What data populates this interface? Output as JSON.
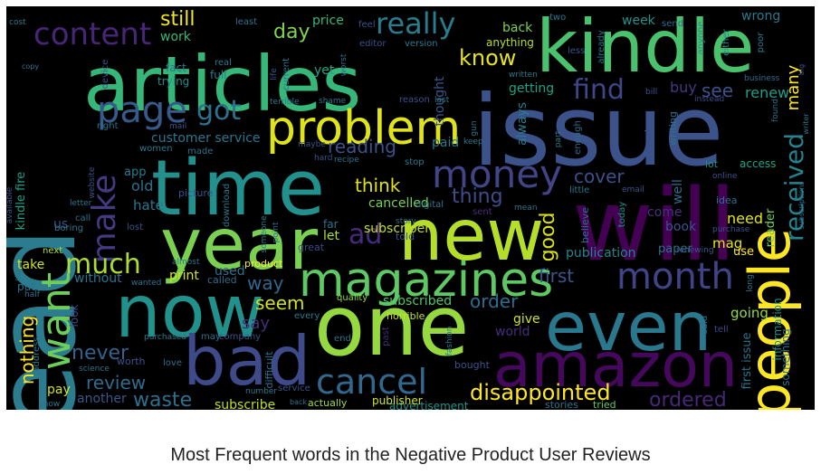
{
  "caption": "Most Frequent words in the Negative Product User Reviews",
  "colormap": "viridis",
  "background": "#000000",
  "words": [
    {
      "text": "read",
      "color": "#2b7c8e"
    },
    {
      "text": "articles",
      "color": "#35b779"
    },
    {
      "text": "issue",
      "color": "#3b528b"
    },
    {
      "text": "kindle",
      "color": "#4ac16d"
    },
    {
      "text": "time",
      "color": "#22908c"
    },
    {
      "text": "year",
      "color": "#7ad151"
    },
    {
      "text": "will",
      "color": "#440154"
    },
    {
      "text": "new",
      "color": "#b5de2b"
    },
    {
      "text": "one",
      "color": "#95d840"
    },
    {
      "text": "now",
      "color": "#21918c"
    },
    {
      "text": "bad",
      "color": "#3e4a89"
    },
    {
      "text": "even",
      "color": "#2a788e"
    },
    {
      "text": "amazon",
      "color": "#46085c"
    },
    {
      "text": "people",
      "color": "#fde725"
    },
    {
      "text": "magazines",
      "color": "#5ec962"
    },
    {
      "text": "problem",
      "color": "#dfe318"
    },
    {
      "text": "month",
      "color": "#404387"
    },
    {
      "text": "money",
      "color": "#414487"
    },
    {
      "text": "page",
      "color": "#375a8c"
    },
    {
      "text": "content",
      "color": "#482677"
    },
    {
      "text": "want",
      "color": "#6ccd5a"
    },
    {
      "text": "cancel",
      "color": "#31688e"
    },
    {
      "text": "make",
      "color": "#443983"
    },
    {
      "text": "much",
      "color": "#addc30"
    },
    {
      "text": "got",
      "color": "#2c728e"
    },
    {
      "text": "really",
      "color": "#287c8e"
    },
    {
      "text": "find",
      "color": "#3f4788"
    },
    {
      "text": "received",
      "color": "#26828e"
    },
    {
      "text": "disappointed",
      "color": "#fde725"
    },
    {
      "text": "ordered",
      "color": "#482878"
    },
    {
      "text": "cover",
      "color": "#3c508b"
    },
    {
      "text": "thing",
      "color": "#3e4c8a"
    },
    {
      "text": "ad",
      "color": "#472a7a"
    },
    {
      "text": "never",
      "color": "#33628d"
    },
    {
      "text": "waste",
      "color": "#2d708e"
    },
    {
      "text": "review",
      "color": "#2f6c8e"
    },
    {
      "text": "still",
      "color": "#f1e51d"
    },
    {
      "text": "know",
      "color": "#e5e419"
    },
    {
      "text": "day",
      "color": "#7fd34e"
    },
    {
      "text": "reading",
      "color": "#3b528b"
    },
    {
      "text": "think",
      "color": "#dde318"
    },
    {
      "text": "good",
      "color": "#d8e219"
    },
    {
      "text": "first",
      "color": "#3a548c"
    },
    {
      "text": "order",
      "color": "#2f6b8e"
    },
    {
      "text": "seem",
      "color": "#d0e11c"
    },
    {
      "text": "way",
      "color": "#30678d"
    },
    {
      "text": "say",
      "color": "#472c7a"
    },
    {
      "text": "nothing",
      "color": "#fde725"
    },
    {
      "text": "many",
      "color": "#fde725"
    },
    {
      "text": "see",
      "color": "#3b528b"
    },
    {
      "text": "buy",
      "color": "#453781"
    },
    {
      "text": "renew",
      "color": "#1f9e89"
    },
    {
      "text": "customer service",
      "color": "#2a768e"
    },
    {
      "text": "subscribe",
      "color": "#bddf26"
    },
    {
      "text": "subscribed",
      "color": "#52c569"
    },
    {
      "text": "cancelled",
      "color": "#7ad151"
    },
    {
      "text": "publication",
      "color": "#25848e"
    },
    {
      "text": "subscriber",
      "color": "#c2df23"
    },
    {
      "text": "old",
      "color": "#2c718e"
    },
    {
      "text": "hate",
      "color": "#2a788e"
    },
    {
      "text": "app",
      "color": "#287d8e"
    },
    {
      "text": "us",
      "color": "#3b528b"
    },
    {
      "text": "give",
      "color": "#d2e21b"
    },
    {
      "text": "world",
      "color": "#472d7b"
    },
    {
      "text": "going",
      "color": "#95d840"
    },
    {
      "text": "need",
      "color": "#e2e418"
    },
    {
      "text": "mag",
      "color": "#e7e419"
    },
    {
      "text": "reader",
      "color": "#6ece58"
    },
    {
      "text": "book",
      "color": "#3b528b"
    },
    {
      "text": "paper",
      "color": "#2c728e"
    },
    {
      "text": "well",
      "color": "#2f6c8e"
    },
    {
      "text": "come",
      "color": "#46337f"
    },
    {
      "text": "use",
      "color": "#fde725"
    },
    {
      "text": "print",
      "color": "#d5e21a"
    },
    {
      "text": "without",
      "color": "#2b748e"
    },
    {
      "text": "take",
      "color": "#d2e21b"
    },
    {
      "text": "used",
      "color": "#2e6f8e"
    },
    {
      "text": "paid",
      "color": "#2a788e"
    },
    {
      "text": "thought",
      "color": "#39568c"
    },
    {
      "text": "always",
      "color": "#277f8e"
    },
    {
      "text": "getting",
      "color": "#1fa188"
    },
    {
      "text": "back",
      "color": "#7ad151"
    },
    {
      "text": "week",
      "color": "#20938c"
    },
    {
      "text": "anything",
      "color": "#b8de29"
    },
    {
      "text": "price",
      "color": "#35b779"
    },
    {
      "text": "work",
      "color": "#39b977"
    },
    {
      "text": "yet",
      "color": "#20a386"
    },
    {
      "text": "fact",
      "color": "#2a788e"
    },
    {
      "text": "trying",
      "color": "#21918c"
    },
    {
      "text": "full",
      "color": "#287c8e"
    },
    {
      "text": "device",
      "color": "#3b528b"
    },
    {
      "text": "kindle fire",
      "color": "#1fa088"
    },
    {
      "text": "another",
      "color": "#38598c"
    },
    {
      "text": "pay",
      "color": "#d2e21b"
    },
    {
      "text": "look",
      "color": "#3e4989"
    },
    {
      "text": "put",
      "color": "#2c728e"
    },
    {
      "text": "called",
      "color": "#2f6c8e"
    },
    {
      "text": "first issue",
      "color": "#2c728e"
    },
    {
      "text": "information",
      "color": "#21918c"
    },
    {
      "text": "something",
      "color": "#2c728e"
    },
    {
      "text": "advertisement",
      "color": "#21918c"
    },
    {
      "text": "publisher",
      "color": "#d2e21b"
    },
    {
      "text": "actually",
      "color": "#a0da39"
    },
    {
      "text": "stories",
      "color": "#2c728e"
    },
    {
      "text": "tried",
      "color": "#5ec962"
    },
    {
      "text": "bought",
      "color": "#3b528b"
    },
    {
      "text": "wrong",
      "color": "#2a788e"
    },
    {
      "text": "send",
      "color": "#2f6c8e"
    },
    {
      "text": "either",
      "color": "#238a8d"
    },
    {
      "text": "poor",
      "color": "#2a788e"
    },
    {
      "text": "business",
      "color": "#2f6c8e"
    },
    {
      "text": "found",
      "color": "#2c728e"
    },
    {
      "text": "two",
      "color": "#2a788e"
    },
    {
      "text": "already",
      "color": "#2c728e"
    },
    {
      "text": "less",
      "color": "#3b528b"
    },
    {
      "text": "anyone",
      "color": "#21918c"
    },
    {
      "text": "writing",
      "color": "#2c728e"
    },
    {
      "text": "account",
      "color": "#3b528b"
    },
    {
      "text": "enough",
      "color": "#2f6c8e"
    },
    {
      "text": "part",
      "color": "#2a788e"
    },
    {
      "text": "instead",
      "color": "#3e4989"
    },
    {
      "text": "lot",
      "color": "#21918c"
    },
    {
      "text": "access",
      "color": "#20a386"
    },
    {
      "text": "online",
      "color": "#3b528b"
    },
    {
      "text": "idea",
      "color": "#2c728e"
    },
    {
      "text": "long",
      "color": "#2a788e"
    },
    {
      "text": "purchase",
      "color": "#3b528b"
    },
    {
      "text": "renewing",
      "color": "#38598c"
    },
    {
      "text": "little",
      "color": "#2a788e"
    },
    {
      "text": "email",
      "color": "#3b528b"
    },
    {
      "text": "believe",
      "color": "#2c728e"
    },
    {
      "text": "today",
      "color": "#21918c"
    },
    {
      "text": "said",
      "color": "#2a788e"
    },
    {
      "text": "tell",
      "color": "#3e4989"
    },
    {
      "text": "sent",
      "color": "#472d7b"
    },
    {
      "text": "mean",
      "color": "#2c728e"
    },
    {
      "text": "digital",
      "color": "#2a788e"
    },
    {
      "text": "story",
      "color": "#2f6c8e"
    },
    {
      "text": "told",
      "color": "#3b528b"
    },
    {
      "text": "let",
      "color": "#b5de2b"
    },
    {
      "text": "far",
      "color": "#2c728e"
    },
    {
      "text": "great",
      "color": "#3e4989"
    },
    {
      "text": "quality",
      "color": "#8fd744"
    },
    {
      "text": "horrible",
      "color": "#c8e020"
    },
    {
      "text": "every",
      "color": "#2a788e"
    },
    {
      "text": "end",
      "color": "#2c728e"
    },
    {
      "text": "past",
      "color": "#472d7b"
    },
    {
      "text": "fashion",
      "color": "#2a788e"
    },
    {
      "text": "difficult",
      "color": "#2c728e"
    },
    {
      "text": "service",
      "color": "#3b528b"
    },
    {
      "text": "number",
      "color": "#2a788e"
    },
    {
      "text": "back",
      "color": "#2c728e"
    },
    {
      "text": "worth",
      "color": "#3b528b"
    },
    {
      "text": "purchased",
      "color": "#2a788e"
    },
    {
      "text": "may",
      "color": "#2c728e"
    },
    {
      "text": "company",
      "color": "#3b528b"
    },
    {
      "text": "love",
      "color": "#2f6c8e"
    },
    {
      "text": "science",
      "color": "#2c728e"
    },
    {
      "text": "address",
      "color": "#2a788e"
    },
    {
      "text": "half",
      "color": "#2c728e"
    },
    {
      "text": "star",
      "color": "#2a788e"
    },
    {
      "text": "wanted",
      "color": "#2c728e"
    },
    {
      "text": "almost",
      "color": "#2a788e"
    },
    {
      "text": "product",
      "color": "#fde725"
    },
    {
      "text": "next",
      "color": "#b5de2b"
    },
    {
      "text": "boring",
      "color": "#2a788e"
    },
    {
      "text": "call",
      "color": "#2c728e"
    },
    {
      "text": "lost",
      "color": "#3b528b"
    },
    {
      "text": "letter",
      "color": "#2a788e"
    },
    {
      "text": "website",
      "color": "#3b528b"
    },
    {
      "text": "right",
      "color": "#2c728e"
    },
    {
      "text": "mail",
      "color": "#3b528b"
    },
    {
      "text": "women",
      "color": "#2a788e"
    },
    {
      "text": "made",
      "color": "#2c728e"
    },
    {
      "text": "picture",
      "color": "#3b528b"
    },
    {
      "text": "download",
      "color": "#2a788e"
    },
    {
      "text": "point",
      "color": "#2c728e"
    },
    {
      "text": "someone",
      "color": "#2a788e"
    },
    {
      "text": "hard",
      "color": "#3b528b"
    },
    {
      "text": "recipe",
      "color": "#2c728e"
    },
    {
      "text": "stop",
      "color": "#2a788e"
    },
    {
      "text": "maybe",
      "color": "#3b528b"
    },
    {
      "text": "terrible",
      "color": "#2a788e"
    },
    {
      "text": "shame",
      "color": "#2c728e"
    },
    {
      "text": "reason",
      "color": "#3b528b"
    },
    {
      "text": "last",
      "color": "#2a788e"
    },
    {
      "text": "gun",
      "color": "#2c728e"
    },
    {
      "text": "bill",
      "color": "#3b528b"
    },
    {
      "text": "written",
      "color": "#2a788e"
    },
    {
      "text": "worst",
      "color": "#2c728e"
    },
    {
      "text": "editor",
      "color": "#3b528b"
    },
    {
      "text": "version",
      "color": "#2a788e"
    },
    {
      "text": "current",
      "color": "#2c728e"
    },
    {
      "text": "life",
      "color": "#3b528b"
    },
    {
      "text": "real",
      "color": "#2a788e"
    },
    {
      "text": "least",
      "color": "#2c728e"
    },
    {
      "text": "feel",
      "color": "#3b528b"
    },
    {
      "text": "cost",
      "color": "#2a788e"
    },
    {
      "text": "copy",
      "color": "#2c728e"
    },
    {
      "text": "available",
      "color": "#3b528b"
    },
    {
      "text": "writer",
      "color": "#2a788e"
    },
    {
      "text": "subscriptions",
      "color": "#2c728e"
    },
    {
      "text": "big",
      "color": "#3b528b"
    },
    {
      "text": "keep",
      "color": "#2a788e"
    },
    {
      "text": "show",
      "color": "#2c728e"
    }
  ]
}
